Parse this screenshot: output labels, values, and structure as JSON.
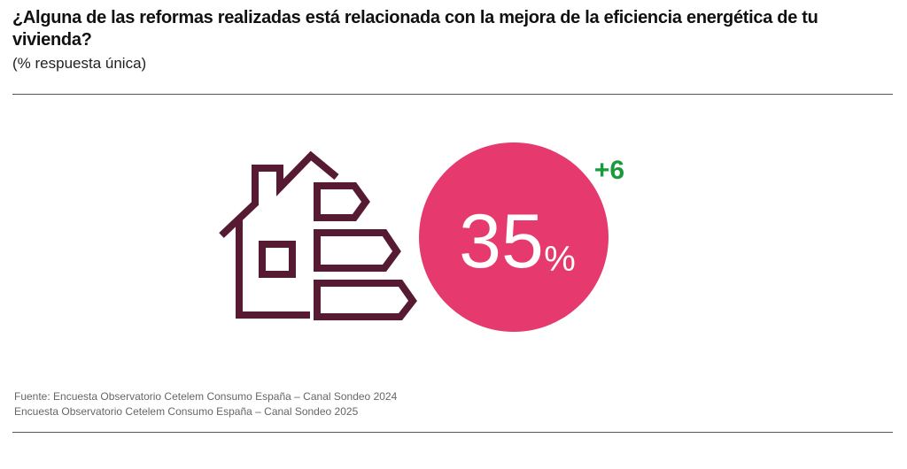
{
  "header": {
    "title": "¿Alguna de las reformas realizadas está relacionada con la mejora de la eficiencia energética de tu vivienda?",
    "subtitle": "(% respuesta única)"
  },
  "figure": {
    "value": "35",
    "unit": "%",
    "change": "+6"
  },
  "source": {
    "lines": [
      "Fuente: Encuesta Observatorio Cetelem Consumo España – Canal Sondeo 2024",
      "Encuesta Observatorio Cetelem Consumo España – Canal Sondeo 2025"
    ]
  }
}
